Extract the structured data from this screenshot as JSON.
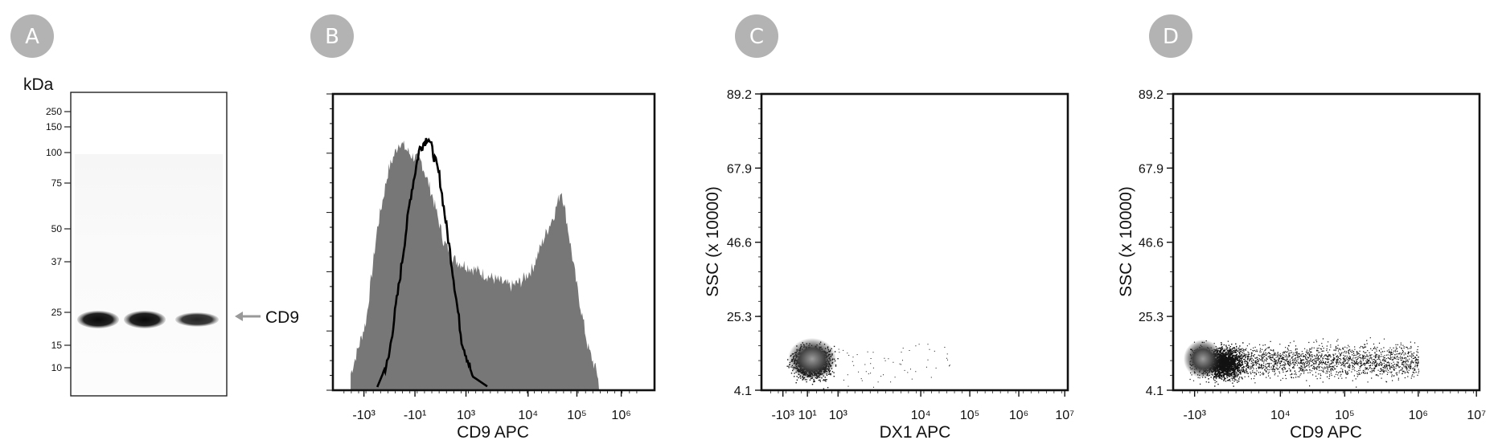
{
  "panels": [
    {
      "letter": "A"
    },
    {
      "letter": "B"
    },
    {
      "letter": "C"
    },
    {
      "letter": "D"
    }
  ],
  "chart_data": [
    {
      "type": "blot",
      "panel": "A",
      "ylabel": "kDa",
      "marker_weights": [
        "250",
        "150",
        "100",
        "75",
        "50",
        "37",
        "25",
        "15",
        "10"
      ],
      "lanes": 3,
      "band_intensity": [
        1.0,
        1.0,
        0.75
      ],
      "band_kda": 22,
      "band_label": "CD9"
    },
    {
      "type": "area",
      "panel": "B",
      "xlabel": "CD9 APC",
      "x_ticks": [
        "-10³",
        "-10¹",
        "10³",
        "10⁴",
        "10⁵",
        "10⁶"
      ],
      "x_scale": "biexponential",
      "series": [
        {
          "name": "",
          "style": "filled-gray",
          "points": [
            [
              -3.2,
              0.05
            ],
            [
              -2.5,
              0.25
            ],
            [
              -2,
              0.6
            ],
            [
              -1.5,
              0.82
            ],
            [
              -1,
              0.93
            ],
            [
              -0.5,
              0.88
            ],
            [
              0,
              0.85
            ],
            [
              0.5,
              0.72
            ],
            [
              1,
              0.55
            ],
            [
              1.5,
              0.48
            ],
            [
              2,
              0.46
            ],
            [
              2.5,
              0.44
            ],
            [
              3,
              0.42
            ],
            [
              3.5,
              0.4
            ],
            [
              4,
              0.38
            ],
            [
              4.5,
              0.4
            ],
            [
              5,
              0.45
            ],
            [
              5.5,
              0.56
            ],
            [
              6,
              0.66
            ],
            [
              6.3,
              0.75
            ],
            [
              6.6,
              0.6
            ],
            [
              7,
              0.38
            ],
            [
              7.5,
              0.15
            ],
            [
              8,
              0.03
            ]
          ]
        },
        {
          "name": "",
          "style": "black-outline",
          "points": [
            [
              -2,
              0.0
            ],
            [
              -1.5,
              0.1
            ],
            [
              -1,
              0.4
            ],
            [
              -0.5,
              0.72
            ],
            [
              -0.1,
              0.9
            ],
            [
              0.3,
              0.95
            ],
            [
              0.8,
              0.8
            ],
            [
              1.3,
              0.5
            ],
            [
              1.8,
              0.18
            ],
            [
              2.3,
              0.04
            ],
            [
              3,
              0.0
            ]
          ]
        }
      ]
    },
    {
      "type": "scatter",
      "panel": "C",
      "xlabel": "DX1 APC",
      "ylabel": "SSC (x 10000)",
      "y_ticks": [
        "89.2",
        "67.9",
        "46.6",
        "25.3",
        "4.1"
      ],
      "ylim": [
        4.1,
        89.2
      ],
      "x_ticks": [
        "-10³",
        "10¹",
        "10³",
        "10⁴",
        "10⁵",
        "10⁶",
        "10⁷"
      ],
      "x_scale": "biexponential",
      "population": {
        "center_x": 0.4,
        "center_y": 12,
        "spread_x": 1.0,
        "spread_y": 7
      }
    },
    {
      "type": "scatter",
      "panel": "D",
      "xlabel": "CD9 APC",
      "ylabel": "SSC (x 10000)",
      "y_ticks": [
        "89.2",
        "67.9",
        "46.6",
        "25.3",
        "4.1"
      ],
      "ylim": [
        4.1,
        89.2
      ],
      "x_ticks": [
        "-10³",
        "10⁴",
        "10⁵",
        "10⁶",
        "10⁷"
      ],
      "x_scale": "biexponential",
      "population": {
        "center_x": 0.2,
        "center_y": 12,
        "spread_x": 0.8,
        "spread_y": 7
      }
    }
  ]
}
